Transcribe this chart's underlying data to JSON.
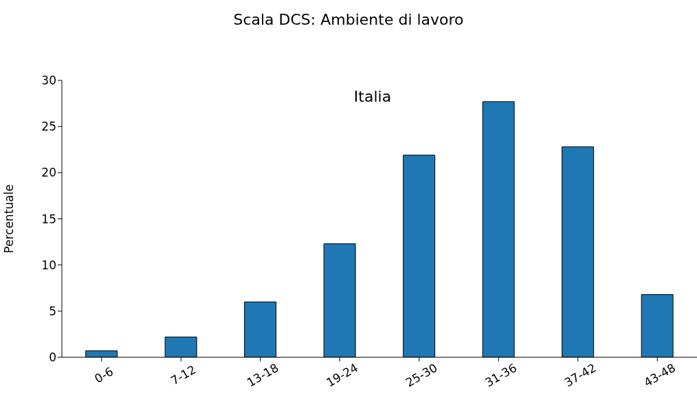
{
  "chart_data": {
    "type": "bar",
    "title": "Scala DCS: Ambiente di lavoro",
    "annotations": [
      "Italia"
    ],
    "ylabel": "Percentuale",
    "categories": [
      "0-6",
      "7-12",
      "13-18",
      "19-24",
      "25-30",
      "31-36",
      "37-42",
      "43-48"
    ],
    "values": [
      0.7,
      2.2,
      6.0,
      12.3,
      21.9,
      27.7,
      22.8,
      6.8
    ],
    "color": "#1f77b4",
    "ylim": [
      0,
      30
    ],
    "yticks": [
      0,
      5,
      10,
      15,
      20,
      25,
      30
    ],
    "grid": false,
    "legend": false
  }
}
